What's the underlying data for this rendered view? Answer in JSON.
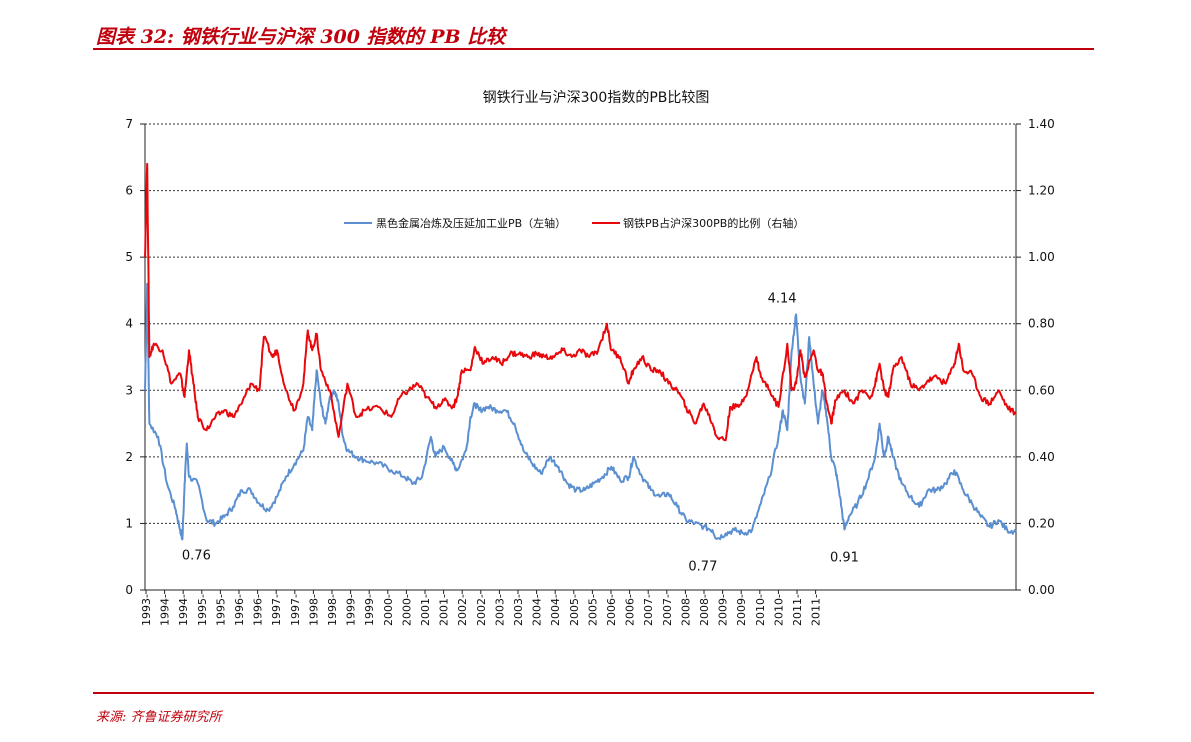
{
  "header": {
    "title": "图表 32:  钢铁行业与沪深 300 指数的 PB 比较"
  },
  "footer": {
    "source": "来源:  齐鲁证券研究所"
  },
  "colors": {
    "accent": "#c0000c",
    "series_blue": "#5b8fd0",
    "series_red": "#e8080c"
  },
  "chart_data": {
    "type": "line",
    "title": "钢铁行业与沪深300指数的PB比较图",
    "legend": {
      "placement": "top-center",
      "entries": [
        "黑色金属冶炼及压延加工业PB（左轴）",
        "钢铁PB占沪深300PB的比例（右轴）"
      ]
    },
    "grid": true,
    "y_left": {
      "min": 0,
      "max": 7,
      "ticks": [
        "0",
        "1",
        "2",
        "3",
        "4",
        "5",
        "6",
        "7"
      ]
    },
    "y_right": {
      "min": 0,
      "max": 1.4,
      "ticks": [
        "0.00",
        "0.20",
        "0.40",
        "0.60",
        "0.80",
        "1.00",
        "1.20",
        "1.40"
      ]
    },
    "x": {
      "min": 1993.0,
      "max": 2012.8,
      "tick_labels": [
        "1993-",
        "1994-",
        "1994-",
        "1995-",
        "1995-",
        "1996-",
        "1996-",
        "1997-",
        "1997-",
        "1998-",
        "1998-",
        "1999-",
        "1999-",
        "2000-",
        "2000-",
        "2001-",
        "2001-",
        "2002-",
        "2002-",
        "2003-",
        "2003-",
        "2004-",
        "2004-",
        "2005-",
        "2005-",
        "2006-",
        "2006-",
        "2007-",
        "2007-",
        "2008-",
        "2008-",
        "2009-",
        "2009-",
        "2010-",
        "2010-",
        "2011-",
        "2011-"
      ]
    },
    "series": [
      {
        "name": "黑色金属冶炼及压延加工业PB（左轴）",
        "axis": "left",
        "points": [
          [
            1993.0,
            3.0
          ],
          [
            1993.05,
            4.6
          ],
          [
            1993.1,
            2.5
          ],
          [
            1993.3,
            2.3
          ],
          [
            1993.5,
            1.6
          ],
          [
            1993.7,
            1.2
          ],
          [
            1993.8,
            0.9
          ],
          [
            1993.85,
            0.76
          ],
          [
            1993.9,
            1.6
          ],
          [
            1993.95,
            2.2
          ],
          [
            1994.0,
            1.7
          ],
          [
            1994.2,
            1.6
          ],
          [
            1994.4,
            1.05
          ],
          [
            1994.6,
            1.0
          ],
          [
            1994.8,
            1.1
          ],
          [
            1995.0,
            1.25
          ],
          [
            1995.2,
            1.5
          ],
          [
            1995.4,
            1.5
          ],
          [
            1995.6,
            1.3
          ],
          [
            1995.8,
            1.2
          ],
          [
            1996.0,
            1.4
          ],
          [
            1996.2,
            1.7
          ],
          [
            1996.4,
            1.9
          ],
          [
            1996.6,
            2.1
          ],
          [
            1996.7,
            2.6
          ],
          [
            1996.8,
            2.4
          ],
          [
            1996.9,
            3.3
          ],
          [
            1997.0,
            2.8
          ],
          [
            1997.1,
            2.5
          ],
          [
            1997.2,
            2.9
          ],
          [
            1997.3,
            3.0
          ],
          [
            1997.4,
            2.8
          ],
          [
            1997.5,
            2.3
          ],
          [
            1997.6,
            2.1
          ],
          [
            1997.8,
            2.0
          ],
          [
            1998.0,
            1.95
          ],
          [
            1998.3,
            1.9
          ],
          [
            1998.6,
            1.8
          ],
          [
            1998.9,
            1.7
          ],
          [
            1999.1,
            1.6
          ],
          [
            1999.3,
            1.7
          ],
          [
            1999.5,
            2.3
          ],
          [
            1999.6,
            2.0
          ],
          [
            1999.8,
            2.15
          ],
          [
            2000.0,
            1.9
          ],
          [
            2000.1,
            1.8
          ],
          [
            2000.3,
            2.1
          ],
          [
            2000.4,
            2.6
          ],
          [
            2000.5,
            2.8
          ],
          [
            2000.6,
            2.7
          ],
          [
            2000.8,
            2.75
          ],
          [
            2001.0,
            2.7
          ],
          [
            2001.2,
            2.7
          ],
          [
            2001.4,
            2.5
          ],
          [
            2001.6,
            2.1
          ],
          [
            2001.8,
            1.9
          ],
          [
            2002.0,
            1.75
          ],
          [
            2002.2,
            2.0
          ],
          [
            2002.4,
            1.85
          ],
          [
            2002.6,
            1.6
          ],
          [
            2002.8,
            1.5
          ],
          [
            2003.0,
            1.5
          ],
          [
            2003.2,
            1.6
          ],
          [
            2003.4,
            1.7
          ],
          [
            2003.6,
            1.85
          ],
          [
            2003.8,
            1.65
          ],
          [
            2004.0,
            1.7
          ],
          [
            2004.1,
            2.0
          ],
          [
            2004.3,
            1.7
          ],
          [
            2004.5,
            1.5
          ],
          [
            2004.7,
            1.4
          ],
          [
            2004.9,
            1.45
          ],
          [
            2005.1,
            1.25
          ],
          [
            2005.3,
            1.05
          ],
          [
            2005.5,
            1.0
          ],
          [
            2005.7,
            0.95
          ],
          [
            2005.9,
            0.9
          ],
          [
            2006.0,
            0.77
          ],
          [
            2006.2,
            0.85
          ],
          [
            2006.4,
            0.9
          ],
          [
            2006.6,
            0.85
          ],
          [
            2006.8,
            0.9
          ],
          [
            2007.0,
            1.3
          ],
          [
            2007.2,
            1.7
          ],
          [
            2007.4,
            2.3
          ],
          [
            2007.5,
            2.7
          ],
          [
            2007.6,
            2.4
          ],
          [
            2007.7,
            3.6
          ],
          [
            2007.8,
            4.14
          ],
          [
            2007.9,
            3.2
          ],
          [
            2008.0,
            2.8
          ],
          [
            2008.1,
            3.8
          ],
          [
            2008.2,
            3.1
          ],
          [
            2008.3,
            2.5
          ],
          [
            2008.4,
            3.0
          ],
          [
            2008.5,
            2.6
          ],
          [
            2008.6,
            2.0
          ],
          [
            2008.7,
            1.8
          ],
          [
            2008.8,
            1.4
          ],
          [
            2008.9,
            0.91
          ],
          [
            2009.0,
            1.1
          ],
          [
            2009.2,
            1.3
          ],
          [
            2009.4,
            1.6
          ],
          [
            2009.6,
            2.0
          ],
          [
            2009.7,
            2.5
          ],
          [
            2009.8,
            2.0
          ],
          [
            2009.9,
            2.3
          ],
          [
            2010.0,
            2.0
          ],
          [
            2010.2,
            1.6
          ],
          [
            2010.4,
            1.4
          ],
          [
            2010.6,
            1.25
          ],
          [
            2010.8,
            1.5
          ],
          [
            2011.0,
            1.5
          ],
          [
            2011.2,
            1.6
          ],
          [
            2011.4,
            1.8
          ],
          [
            2011.6,
            1.5
          ],
          [
            2011.8,
            1.3
          ],
          [
            2012.0,
            1.1
          ],
          [
            2012.2,
            0.95
          ],
          [
            2012.4,
            1.05
          ],
          [
            2012.6,
            0.9
          ],
          [
            2012.8,
            0.88
          ]
        ]
      },
      {
        "name": "钢铁PB占沪深300PB的比例（右轴）",
        "axis": "right",
        "points": [
          [
            1993.0,
            1.0
          ],
          [
            1993.05,
            1.28
          ],
          [
            1993.1,
            0.7
          ],
          [
            1993.2,
            0.74
          ],
          [
            1993.4,
            0.72
          ],
          [
            1993.6,
            0.62
          ],
          [
            1993.8,
            0.65
          ],
          [
            1993.9,
            0.58
          ],
          [
            1994.0,
            0.72
          ],
          [
            1994.1,
            0.62
          ],
          [
            1994.2,
            0.52
          ],
          [
            1994.4,
            0.48
          ],
          [
            1994.6,
            0.52
          ],
          [
            1994.8,
            0.54
          ],
          [
            1995.0,
            0.52
          ],
          [
            1995.2,
            0.56
          ],
          [
            1995.4,
            0.62
          ],
          [
            1995.6,
            0.6
          ],
          [
            1995.7,
            0.76
          ],
          [
            1995.9,
            0.7
          ],
          [
            1996.0,
            0.72
          ],
          [
            1996.2,
            0.6
          ],
          [
            1996.4,
            0.54
          ],
          [
            1996.6,
            0.62
          ],
          [
            1996.7,
            0.78
          ],
          [
            1996.8,
            0.72
          ],
          [
            1996.9,
            0.77
          ],
          [
            1997.0,
            0.66
          ],
          [
            1997.2,
            0.6
          ],
          [
            1997.4,
            0.46
          ],
          [
            1997.6,
            0.62
          ],
          [
            1997.8,
            0.52
          ],
          [
            1998.0,
            0.54
          ],
          [
            1998.3,
            0.55
          ],
          [
            1998.6,
            0.52
          ],
          [
            1998.8,
            0.58
          ],
          [
            1999.0,
            0.6
          ],
          [
            1999.2,
            0.62
          ],
          [
            1999.4,
            0.58
          ],
          [
            1999.6,
            0.55
          ],
          [
            1999.8,
            0.57
          ],
          [
            2000.0,
            0.55
          ],
          [
            2000.1,
            0.58
          ],
          [
            2000.2,
            0.66
          ],
          [
            2000.4,
            0.66
          ],
          [
            2000.5,
            0.73
          ],
          [
            2000.7,
            0.68
          ],
          [
            2000.9,
            0.7
          ],
          [
            2001.1,
            0.68
          ],
          [
            2001.3,
            0.71
          ],
          [
            2001.5,
            0.71
          ],
          [
            2001.7,
            0.7
          ],
          [
            2001.9,
            0.71
          ],
          [
            2002.1,
            0.7
          ],
          [
            2002.3,
            0.7
          ],
          [
            2002.5,
            0.72
          ],
          [
            2002.7,
            0.7
          ],
          [
            2002.9,
            0.72
          ],
          [
            2003.1,
            0.7
          ],
          [
            2003.3,
            0.72
          ],
          [
            2003.5,
            0.8
          ],
          [
            2003.6,
            0.72
          ],
          [
            2003.8,
            0.7
          ],
          [
            2004.0,
            0.62
          ],
          [
            2004.1,
            0.66
          ],
          [
            2004.3,
            0.7
          ],
          [
            2004.5,
            0.66
          ],
          [
            2004.7,
            0.66
          ],
          [
            2004.9,
            0.62
          ],
          [
            2005.1,
            0.6
          ],
          [
            2005.3,
            0.55
          ],
          [
            2005.5,
            0.5
          ],
          [
            2005.7,
            0.56
          ],
          [
            2005.9,
            0.5
          ],
          [
            2006.0,
            0.46
          ],
          [
            2006.2,
            0.45
          ],
          [
            2006.3,
            0.55
          ],
          [
            2006.5,
            0.55
          ],
          [
            2006.7,
            0.6
          ],
          [
            2006.9,
            0.7
          ],
          [
            2007.0,
            0.64
          ],
          [
            2007.2,
            0.6
          ],
          [
            2007.4,
            0.55
          ],
          [
            2007.6,
            0.74
          ],
          [
            2007.7,
            0.6
          ],
          [
            2007.8,
            0.62
          ],
          [
            2007.9,
            0.72
          ],
          [
            2008.0,
            0.64
          ],
          [
            2008.2,
            0.72
          ],
          [
            2008.3,
            0.66
          ],
          [
            2008.4,
            0.65
          ],
          [
            2008.5,
            0.56
          ],
          [
            2008.6,
            0.5
          ],
          [
            2008.7,
            0.57
          ],
          [
            2008.9,
            0.6
          ],
          [
            2009.1,
            0.56
          ],
          [
            2009.3,
            0.6
          ],
          [
            2009.5,
            0.58
          ],
          [
            2009.6,
            0.62
          ],
          [
            2009.7,
            0.68
          ],
          [
            2009.8,
            0.6
          ],
          [
            2009.9,
            0.58
          ],
          [
            2010.0,
            0.66
          ],
          [
            2010.2,
            0.7
          ],
          [
            2010.4,
            0.62
          ],
          [
            2010.6,
            0.6
          ],
          [
            2010.8,
            0.63
          ],
          [
            2011.0,
            0.64
          ],
          [
            2011.2,
            0.62
          ],
          [
            2011.4,
            0.68
          ],
          [
            2011.5,
            0.74
          ],
          [
            2011.6,
            0.66
          ],
          [
            2011.8,
            0.65
          ],
          [
            2012.0,
            0.58
          ],
          [
            2012.2,
            0.56
          ],
          [
            2012.4,
            0.6
          ],
          [
            2012.6,
            0.55
          ],
          [
            2012.8,
            0.53
          ]
        ]
      }
    ],
    "annotations": [
      {
        "text": "0.76",
        "x": 1993.85,
        "y": 0.76
      },
      {
        "text": "0.77",
        "x": 2006.0,
        "y": 0.77
      },
      {
        "text": "0.91",
        "x": 2008.9,
        "y": 0.91
      },
      {
        "text": "4.14",
        "x": 2007.8,
        "y": 4.14
      }
    ]
  }
}
